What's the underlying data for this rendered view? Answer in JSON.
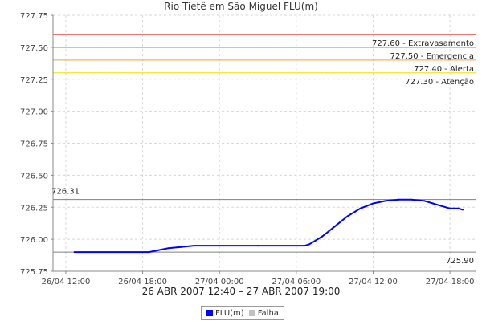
{
  "chart_data": {
    "type": "line",
    "title": "Rio Tietê em São Miguel FLU(m)",
    "xlabel": "26 ABR 2007 12:40 – 27 ABR 2007 19:00",
    "ylabel": "",
    "x_range": [
      "2007-04-26 11:00",
      "2007-04-27 20:00"
    ],
    "ylim": [
      725.75,
      727.75
    ],
    "y_ticks": [
      "725.75",
      "726.00",
      "726.25",
      "726.50",
      "726.75",
      "727.00",
      "727.25",
      "727.50",
      "727.75"
    ],
    "x_ticks": [
      {
        "t": "2007-04-26 12:00",
        "label": "26/04 12:00"
      },
      {
        "t": "2007-04-26 18:00",
        "label": "26/04 18:00"
      },
      {
        "t": "2007-04-27 00:00",
        "label": "27/04 00:00"
      },
      {
        "t": "2007-04-27 06:00",
        "label": "27/04 06:00"
      },
      {
        "t": "2007-04-27 12:00",
        "label": "27/04 12:00"
      },
      {
        "t": "2007-04-27 18:00",
        "label": "27/04 18:00"
      }
    ],
    "grid": true,
    "legend_position": "bottom",
    "series": [
      {
        "name": "FLU(m)",
        "color": "#0000ff",
        "points": [
          [
            "2007-04-26 12:40",
            725.9
          ],
          [
            "2007-04-26 18:30",
            725.9
          ],
          [
            "2007-04-26 19:00",
            725.91
          ],
          [
            "2007-04-26 19:30",
            725.92
          ],
          [
            "2007-04-26 20:00",
            725.93
          ],
          [
            "2007-04-26 21:00",
            725.94
          ],
          [
            "2007-04-26 22:00",
            725.95
          ],
          [
            "2007-04-27 03:00",
            725.95
          ],
          [
            "2007-04-27 06:40",
            725.95
          ],
          [
            "2007-04-27 07:00",
            725.96
          ],
          [
            "2007-04-27 07:30",
            725.99
          ],
          [
            "2007-04-27 08:00",
            726.02
          ],
          [
            "2007-04-27 08:30",
            726.06
          ],
          [
            "2007-04-27 09:00",
            726.1
          ],
          [
            "2007-04-27 09:30",
            726.14
          ],
          [
            "2007-04-27 10:00",
            726.18
          ],
          [
            "2007-04-27 10:30",
            726.21
          ],
          [
            "2007-04-27 11:00",
            726.24
          ],
          [
            "2007-04-27 11:30",
            726.26
          ],
          [
            "2007-04-27 12:00",
            726.28
          ],
          [
            "2007-04-27 12:30",
            726.29
          ],
          [
            "2007-04-27 13:00",
            726.3
          ],
          [
            "2007-04-27 14:00",
            726.31
          ],
          [
            "2007-04-27 15:00",
            726.31
          ],
          [
            "2007-04-27 16:00",
            726.3
          ],
          [
            "2007-04-27 16:40",
            726.28
          ],
          [
            "2007-04-27 17:20",
            726.26
          ],
          [
            "2007-04-27 18:00",
            726.24
          ],
          [
            "2007-04-27 18:40",
            726.24
          ],
          [
            "2007-04-27 19:00",
            726.23
          ]
        ]
      },
      {
        "name": "Falha",
        "color": "#c0c0c0",
        "points": []
      }
    ],
    "reference_lines": [
      {
        "value": 727.6,
        "label": "727.60 - Extravasamento",
        "color": "#e02020"
      },
      {
        "value": 727.5,
        "label": "727.50 - Emergencia",
        "color": "#d020d0"
      },
      {
        "value": 727.4,
        "label": "727.40 - Alerta",
        "color": "#f0a040"
      },
      {
        "value": 727.3,
        "label": "727.30 - Atenção",
        "color": "#f0e000"
      },
      {
        "value": 726.31,
        "label": "726.31",
        "color": "#808080",
        "label_side": "left"
      },
      {
        "value": 725.9,
        "label": "725.90",
        "color": "#808080",
        "label_side": "right"
      }
    ]
  }
}
